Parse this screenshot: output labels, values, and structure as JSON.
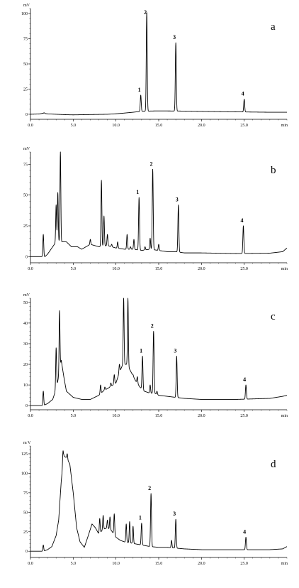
{
  "chart_data": [
    {
      "type": "line",
      "panel_label": "a",
      "ylabel": "mV",
      "xlabel": "min",
      "xlim": [
        0,
        30
      ],
      "ylim": [
        -5,
        105
      ],
      "x_ticks": [
        "0.0",
        "5.0",
        "10.0",
        "15.0",
        "20.0",
        "25.0"
      ],
      "y_ticks": [
        0,
        25,
        50,
        75,
        100
      ],
      "baseline": [
        [
          0,
          0
        ],
        [
          1,
          0.3
        ],
        [
          1.5,
          1
        ],
        [
          2,
          0.4
        ],
        [
          3,
          0
        ],
        [
          4,
          -0.4
        ],
        [
          5,
          -0.6
        ],
        [
          7,
          -0.3
        ],
        [
          9,
          0
        ],
        [
          10,
          0.5
        ],
        [
          11,
          1.2
        ],
        [
          12,
          2
        ],
        [
          12.5,
          2.5
        ],
        [
          13.2,
          3
        ],
        [
          14,
          3.2
        ],
        [
          14.5,
          3.3
        ],
        [
          16,
          3.3
        ],
        [
          17.5,
          3.2
        ],
        [
          19,
          3
        ],
        [
          22,
          2.6
        ],
        [
          24,
          2.4
        ],
        [
          26,
          2.2
        ],
        [
          28,
          2
        ],
        [
          30,
          2
        ]
      ],
      "peaks": [
        {
          "label": "1",
          "rt": 12.9,
          "height": 19
        },
        {
          "label": "2",
          "rt": 13.6,
          "height": 101
        },
        {
          "label": "3",
          "rt": 17.0,
          "height": 71
        },
        {
          "label": "4",
          "rt": 25.0,
          "height": 15
        }
      ],
      "minor_peaks": [
        [
          1.6,
          1.5
        ],
        [
          11.5,
          1.5
        ]
      ],
      "grid": false
    },
    {
      "type": "line",
      "panel_label": "b",
      "ylabel": "mV",
      "xlabel": "min",
      "xlim": [
        0,
        30
      ],
      "ylim": [
        -5,
        85
      ],
      "x_ticks": [
        "0.0",
        "5.0",
        "10.0",
        "15.0",
        "20.0",
        "25.0"
      ],
      "y_ticks": [
        0,
        25,
        50,
        75
      ],
      "baseline": [
        [
          0,
          0
        ],
        [
          1.3,
          0
        ],
        [
          1.5,
          0
        ],
        [
          1.7,
          0
        ],
        [
          2,
          2
        ],
        [
          2.5,
          7
        ],
        [
          3,
          12
        ],
        [
          4.2,
          12
        ],
        [
          4.8,
          8
        ],
        [
          5.5,
          8
        ],
        [
          6,
          6
        ],
        [
          7,
          10
        ],
        [
          8,
          8
        ],
        [
          9,
          9
        ],
        [
          10,
          7
        ],
        [
          11,
          6
        ],
        [
          12,
          6
        ],
        [
          13,
          5
        ],
        [
          14,
          6
        ],
        [
          15,
          5
        ],
        [
          16,
          4
        ],
        [
          17,
          4
        ],
        [
          18,
          3
        ],
        [
          20,
          3
        ],
        [
          24,
          2.5
        ],
        [
          28,
          2.8
        ],
        [
          29.5,
          4
        ],
        [
          30,
          7
        ]
      ],
      "peaks": [
        {
          "label": "1",
          "rt": 12.7,
          "height": 48
        },
        {
          "label": "2",
          "rt": 14.3,
          "height": 71
        },
        {
          "label": "3",
          "rt": 17.3,
          "height": 42
        },
        {
          "label": "4",
          "rt": 24.9,
          "height": 25
        }
      ],
      "minor_peaks": [
        [
          1.5,
          18
        ],
        [
          3.0,
          42
        ],
        [
          3.2,
          52
        ],
        [
          3.5,
          85
        ],
        [
          5.5,
          4
        ],
        [
          7.0,
          14
        ],
        [
          7.6,
          6
        ],
        [
          8.3,
          62
        ],
        [
          8.6,
          33
        ],
        [
          9.0,
          18
        ],
        [
          9.5,
          10
        ],
        [
          10.2,
          12
        ],
        [
          11.3,
          18
        ],
        [
          11.7,
          8
        ],
        [
          12.1,
          14
        ],
        [
          13.4,
          8
        ],
        [
          14.0,
          15
        ],
        [
          15.0,
          10
        ]
      ],
      "grid": false
    },
    {
      "type": "line",
      "panel_label": "c",
      "ylabel": "mV",
      "xlabel": "min",
      "xlim": [
        0,
        30
      ],
      "ylim": [
        -2,
        52
      ],
      "x_ticks": [
        "0.0",
        "5.0",
        "10.0",
        "15.0",
        "20.0",
        "25.0"
      ],
      "y_ticks": [
        0,
        10,
        20,
        30,
        40,
        50
      ],
      "baseline": [
        [
          0,
          0
        ],
        [
          1.5,
          0
        ],
        [
          2,
          1
        ],
        [
          2.6,
          3
        ],
        [
          3,
          8
        ],
        [
          3.3,
          14
        ],
        [
          3.6,
          22
        ],
        [
          3.9,
          14
        ],
        [
          4.2,
          7
        ],
        [
          5,
          4
        ],
        [
          6,
          3
        ],
        [
          7,
          3
        ],
        [
          7.5,
          4
        ],
        [
          8,
          5
        ],
        [
          8.5,
          7
        ],
        [
          9.3,
          9
        ],
        [
          10,
          11
        ],
        [
          10.4,
          16
        ],
        [
          10.8,
          20
        ],
        [
          11.3,
          20
        ],
        [
          11.8,
          16
        ],
        [
          12.3,
          12
        ],
        [
          12.8,
          9
        ],
        [
          13.3,
          7
        ],
        [
          14,
          6
        ],
        [
          14.5,
          6
        ],
        [
          15,
          5
        ],
        [
          16,
          4.5
        ],
        [
          17,
          4
        ],
        [
          18,
          3.5
        ],
        [
          20,
          3
        ],
        [
          24,
          3
        ],
        [
          28,
          3.5
        ],
        [
          29.5,
          4.5
        ],
        [
          30,
          5
        ]
      ],
      "peaks": [
        {
          "label": "1",
          "rt": 13.1,
          "height": 24
        },
        {
          "label": "2",
          "rt": 14.4,
          "height": 36
        },
        {
          "label": "3",
          "rt": 17.1,
          "height": 24
        },
        {
          "label": "4",
          "rt": 25.2,
          "height": 10
        }
      ],
      "minor_peaks": [
        [
          1.5,
          7
        ],
        [
          3.0,
          28
        ],
        [
          3.4,
          46
        ],
        [
          8.2,
          10
        ],
        [
          8.7,
          9
        ],
        [
          9.4,
          11
        ],
        [
          9.8,
          15
        ],
        [
          10.4,
          20
        ],
        [
          10.9,
          52
        ],
        [
          11.4,
          52
        ],
        [
          12.0,
          15
        ],
        [
          12.5,
          14
        ],
        [
          14.0,
          10
        ],
        [
          14.8,
          7
        ]
      ],
      "grid": false
    },
    {
      "type": "line",
      "panel_label": "d",
      "ylabel": "m V",
      "xlabel": "min",
      "xlim": [
        0,
        30
      ],
      "ylim": [
        -8,
        135
      ],
      "x_ticks": [
        "0.0",
        "5.0",
        "10.0",
        "15.0",
        "20.0",
        "25.0"
      ],
      "y_ticks": [
        0,
        25,
        50,
        75,
        100,
        125
      ],
      "baseline": [
        [
          0,
          0
        ],
        [
          1.5,
          0
        ],
        [
          2,
          2
        ],
        [
          2.5,
          6
        ],
        [
          3,
          20
        ],
        [
          3.3,
          40
        ],
        [
          3.6,
          90
        ],
        [
          3.9,
          122
        ],
        [
          4.2,
          120
        ],
        [
          4.6,
          112
        ],
        [
          5,
          75
        ],
        [
          5.4,
          30
        ],
        [
          5.8,
          12
        ],
        [
          6.3,
          5
        ],
        [
          6.7,
          18
        ],
        [
          7.2,
          35
        ],
        [
          7.6,
          30
        ],
        [
          8,
          22
        ],
        [
          8.5,
          28
        ],
        [
          9,
          30
        ],
        [
          9.5,
          26
        ],
        [
          10,
          18
        ],
        [
          10.5,
          14
        ],
        [
          11,
          12
        ],
        [
          12,
          10
        ],
        [
          13,
          8
        ],
        [
          14,
          6
        ],
        [
          15,
          5
        ],
        [
          16,
          5
        ],
        [
          17,
          4
        ],
        [
          18,
          3
        ],
        [
          20,
          2
        ],
        [
          24,
          2
        ],
        [
          28,
          2
        ],
        [
          29.5,
          3
        ],
        [
          30,
          6
        ]
      ],
      "peaks": [
        {
          "label": "1",
          "rt": 13.0,
          "height": 36
        },
        {
          "label": "2",
          "rt": 14.1,
          "height": 74
        },
        {
          "label": "3",
          "rt": 17.0,
          "height": 41
        },
        {
          "label": "4",
          "rt": 25.2,
          "height": 18
        }
      ],
      "minor_peaks": [
        [
          1.5,
          8
        ],
        [
          3.8,
          128
        ],
        [
          4.3,
          125
        ],
        [
          8.1,
          42
        ],
        [
          8.5,
          46
        ],
        [
          9.0,
          40
        ],
        [
          9.3,
          44
        ],
        [
          9.8,
          48
        ],
        [
          11.2,
          35
        ],
        [
          11.6,
          38
        ],
        [
          12.0,
          32
        ],
        [
          16.5,
          14
        ]
      ],
      "grid": false
    }
  ]
}
